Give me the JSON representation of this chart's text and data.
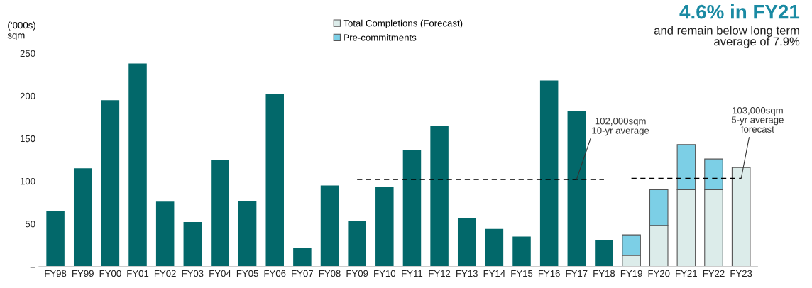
{
  "chart_data": {
    "type": "bar",
    "title": "4.6% in FY21",
    "subtitle": "and remain below long term\naverage of 7.9%",
    "ylabel": "(‘000s)\nsqm",
    "categories": [
      "FY98",
      "FY99",
      "FY00",
      "FY01",
      "FY02",
      "FY03",
      "FY04",
      "FY05",
      "FY06",
      "FY07",
      "FY08",
      "FY09",
      "FY10",
      "FY11",
      "FY12",
      "FY13",
      "FY14",
      "FY15",
      "FY16",
      "FY17",
      "FY18",
      "FY19",
      "FY20",
      "FY21",
      "FY22",
      "FY23"
    ],
    "stacked": true,
    "series": [
      {
        "color": "#02686a",
        "values": [
          65,
          115,
          195,
          238,
          76,
          52,
          125,
          77,
          202,
          22,
          95,
          53,
          93,
          136,
          165,
          57,
          44,
          35,
          218,
          182,
          31,
          null,
          null,
          null,
          null,
          null
        ]
      },
      {
        "name": "Total Completions (Forecast)",
        "color": "#dcecea",
        "values": [
          null,
          null,
          null,
          null,
          null,
          null,
          null,
          null,
          null,
          null,
          null,
          null,
          null,
          null,
          null,
          null,
          null,
          null,
          null,
          null,
          null,
          13,
          48,
          90,
          90,
          116
        ]
      },
      {
        "name": "Pre-commitments",
        "color": "#7ccfe6",
        "values": [
          null,
          null,
          null,
          null,
          null,
          null,
          null,
          null,
          null,
          null,
          null,
          null,
          null,
          null,
          null,
          null,
          null,
          null,
          null,
          null,
          null,
          24,
          42,
          53,
          36,
          null
        ]
      },
      {
        "type": "line",
        "color": "#000000",
        "line_style": "dashed",
        "marker": "none",
        "values": [
          null,
          null,
          null,
          null,
          null,
          null,
          null,
          null,
          null,
          null,
          null,
          102,
          102,
          102,
          102,
          102,
          102,
          102,
          102,
          102,
          102,
          null,
          null,
          null,
          null,
          null
        ]
      },
      {
        "type": "line",
        "color": "#000000",
        "line_style": "dashed",
        "marker": "none",
        "values": [
          null,
          null,
          null,
          null,
          null,
          null,
          null,
          null,
          null,
          null,
          null,
          null,
          null,
          null,
          null,
          null,
          null,
          null,
          null,
          null,
          null,
          103,
          103,
          103,
          103,
          103
        ]
      }
    ],
    "ylim": [
      0,
      250
    ],
    "yticks": [
      {
        "value": 0,
        "label": "–"
      },
      50,
      100,
      150,
      200,
      250
    ],
    "grid": false,
    "legend": "top",
    "annotations": [
      {
        "text": "102,000sqm\n10-yr average",
        "x": "FY17",
        "y": 102
      },
      {
        "text": "103,000sqm\n5-yr average\nforecast",
        "x": "FY23",
        "y": 103
      }
    ]
  }
}
